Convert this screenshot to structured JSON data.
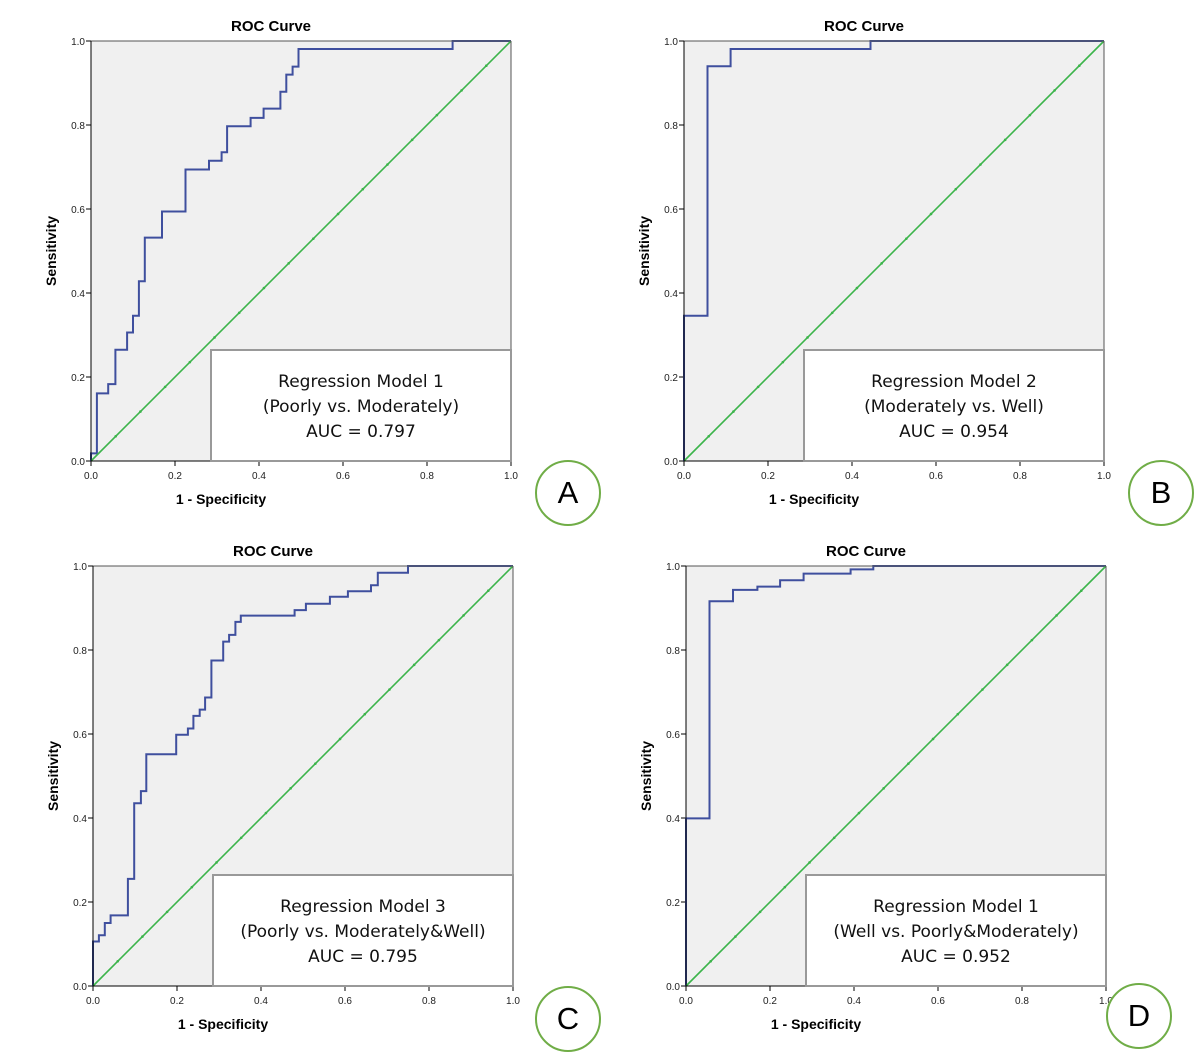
{
  "colors": {
    "curve": "#3f4f9e",
    "reference": "#3cb44b",
    "plot_bg": "#f0f0f0",
    "badge": "#70ad47"
  },
  "chart_data": [
    {
      "type": "line",
      "panel_label": "A",
      "title": "ROC Curve",
      "xlabel": "1 - Specificity",
      "ylabel": "Sensitivity",
      "xlim": [
        0,
        1
      ],
      "ylim": [
        0,
        1
      ],
      "xticks": [
        "0.0",
        "0.2",
        "0.4",
        "0.6",
        "0.8",
        "1.0"
      ],
      "yticks": [
        "0.0",
        "0.2",
        "0.4",
        "0.6",
        "0.8",
        "1.0"
      ],
      "legend": [
        "Regression Model 1",
        "(Poorly vs. Moderately)",
        "AUC = 0.797"
      ],
      "legend_position": "bottom-right",
      "series": [
        {
          "name": "ROC",
          "points": [
            [
              0,
              0
            ],
            [
              0,
              0.018
            ],
            [
              0.014,
              0.018
            ],
            [
              0.014,
              0.161
            ],
            [
              0.041,
              0.161
            ],
            [
              0.041,
              0.183
            ],
            [
              0.058,
              0.183
            ],
            [
              0.058,
              0.265
            ],
            [
              0.086,
              0.265
            ],
            [
              0.086,
              0.306
            ],
            [
              0.1,
              0.306
            ],
            [
              0.1,
              0.346
            ],
            [
              0.114,
              0.346
            ],
            [
              0.114,
              0.428
            ],
            [
              0.128,
              0.428
            ],
            [
              0.128,
              0.532
            ],
            [
              0.169,
              0.532
            ],
            [
              0.169,
              0.594
            ],
            [
              0.225,
              0.594
            ],
            [
              0.225,
              0.694
            ],
            [
              0.281,
              0.694
            ],
            [
              0.281,
              0.715
            ],
            [
              0.311,
              0.715
            ],
            [
              0.311,
              0.735
            ],
            [
              0.324,
              0.735
            ],
            [
              0.324,
              0.797
            ],
            [
              0.38,
              0.797
            ],
            [
              0.38,
              0.817
            ],
            [
              0.411,
              0.817
            ],
            [
              0.411,
              0.839
            ],
            [
              0.451,
              0.839
            ],
            [
              0.451,
              0.879
            ],
            [
              0.465,
              0.879
            ],
            [
              0.465,
              0.92
            ],
            [
              0.48,
              0.92
            ],
            [
              0.48,
              0.939
            ],
            [
              0.494,
              0.939
            ],
            [
              0.494,
              0.981
            ],
            [
              0.861,
              0.981
            ],
            [
              0.861,
              1
            ],
            [
              1,
              1
            ]
          ]
        },
        {
          "name": "Reference",
          "points": [
            [
              0,
              0
            ],
            [
              1,
              1
            ]
          ]
        }
      ]
    },
    {
      "type": "line",
      "panel_label": "B",
      "title": "ROC Curve",
      "xlabel": "1 - Specificity",
      "ylabel": "Sensitivity",
      "xlim": [
        0,
        1
      ],
      "ylim": [
        0,
        1
      ],
      "xticks": [
        "0.0",
        "0.2",
        "0.4",
        "0.6",
        "0.8",
        "1.0"
      ],
      "yticks": [
        "0.0",
        "0.2",
        "0.4",
        "0.6",
        "0.8",
        "1.0"
      ],
      "legend": [
        "Regression Model 2",
        "(Moderately vs. Well)",
        "AUC = 0.954"
      ],
      "legend_position": "bottom-right",
      "series": [
        {
          "name": "ROC",
          "points": [
            [
              0,
              0
            ],
            [
              0,
              0.346
            ],
            [
              0.056,
              0.346
            ],
            [
              0.056,
              0.94
            ],
            [
              0.111,
              0.94
            ],
            [
              0.111,
              0.981
            ],
            [
              0.444,
              0.981
            ],
            [
              0.444,
              1
            ],
            [
              1,
              1
            ]
          ]
        },
        {
          "name": "Reference",
          "points": [
            [
              0,
              0
            ],
            [
              1,
              1
            ]
          ]
        }
      ]
    },
    {
      "type": "line",
      "panel_label": "C",
      "title": "ROC Curve",
      "xlabel": "1 - Specificity",
      "ylabel": "Sensitivity",
      "xlim": [
        0,
        1
      ],
      "ylim": [
        0,
        1
      ],
      "xticks": [
        "0.0",
        "0.2",
        "0.4",
        "0.6",
        "0.8",
        "1.0"
      ],
      "yticks": [
        "0.0",
        "0.2",
        "0.4",
        "0.6",
        "0.8",
        "1.0"
      ],
      "legend": [
        "Regression Model 3",
        "(Poorly vs. Moderately&Well)",
        "AUC = 0.795"
      ],
      "legend_position": "bottom-right",
      "series": [
        {
          "name": "ROC",
          "points": [
            [
              0,
              0
            ],
            [
              0,
              0.106
            ],
            [
              0.014,
              0.106
            ],
            [
              0.014,
              0.121
            ],
            [
              0.028,
              0.121
            ],
            [
              0.028,
              0.15
            ],
            [
              0.042,
              0.15
            ],
            [
              0.042,
              0.168
            ],
            [
              0.083,
              0.168
            ],
            [
              0.083,
              0.255
            ],
            [
              0.098,
              0.255
            ],
            [
              0.098,
              0.435
            ],
            [
              0.114,
              0.435
            ],
            [
              0.114,
              0.464
            ],
            [
              0.127,
              0.464
            ],
            [
              0.127,
              0.552
            ],
            [
              0.198,
              0.552
            ],
            [
              0.198,
              0.598
            ],
            [
              0.226,
              0.598
            ],
            [
              0.226,
              0.613
            ],
            [
              0.239,
              0.613
            ],
            [
              0.239,
              0.643
            ],
            [
              0.254,
              0.643
            ],
            [
              0.254,
              0.658
            ],
            [
              0.267,
              0.658
            ],
            [
              0.267,
              0.687
            ],
            [
              0.282,
              0.687
            ],
            [
              0.282,
              0.775
            ],
            [
              0.31,
              0.775
            ],
            [
              0.31,
              0.82
            ],
            [
              0.324,
              0.82
            ],
            [
              0.324,
              0.836
            ],
            [
              0.339,
              0.836
            ],
            [
              0.339,
              0.867
            ],
            [
              0.352,
              0.867
            ],
            [
              0.352,
              0.882
            ],
            [
              0.48,
              0.882
            ],
            [
              0.48,
              0.895
            ],
            [
              0.507,
              0.895
            ],
            [
              0.507,
              0.91
            ],
            [
              0.564,
              0.91
            ],
            [
              0.564,
              0.927
            ],
            [
              0.607,
              0.927
            ],
            [
              0.607,
              0.94
            ],
            [
              0.662,
              0.94
            ],
            [
              0.662,
              0.954
            ],
            [
              0.678,
              0.954
            ],
            [
              0.678,
              0.984
            ],
            [
              0.75,
              0.984
            ],
            [
              0.75,
              1
            ],
            [
              1,
              1
            ]
          ]
        },
        {
          "name": "Reference",
          "points": [
            [
              0,
              0
            ],
            [
              1,
              1
            ]
          ]
        }
      ]
    },
    {
      "type": "line",
      "panel_label": "D",
      "title": "ROC Curve",
      "xlabel": "1 - Specificity",
      "ylabel": "Sensitivity",
      "xlim": [
        0,
        1
      ],
      "ylim": [
        0,
        1
      ],
      "xticks": [
        "0.0",
        "0.2",
        "0.4",
        "0.6",
        "0.8",
        "1.0"
      ],
      "yticks": [
        "0.0",
        "0.2",
        "0.4",
        "0.6",
        "0.8",
        "1.0"
      ],
      "legend": [
        "Regression Model 1",
        "(Well vs. Poorly&Moderately)",
        "AUC = 0.952"
      ],
      "legend_position": "bottom-right",
      "series": [
        {
          "name": "ROC",
          "points": [
            [
              0,
              0
            ],
            [
              0,
              0.399
            ],
            [
              0.056,
              0.399
            ],
            [
              0.056,
              0.916
            ],
            [
              0.112,
              0.916
            ],
            [
              0.112,
              0.943
            ],
            [
              0.17,
              0.943
            ],
            [
              0.17,
              0.951
            ],
            [
              0.224,
              0.951
            ],
            [
              0.224,
              0.966
            ],
            [
              0.28,
              0.966
            ],
            [
              0.28,
              0.982
            ],
            [
              0.392,
              0.982
            ],
            [
              0.392,
              0.992
            ],
            [
              0.446,
              0.992
            ],
            [
              0.446,
              1
            ],
            [
              1,
              1
            ]
          ]
        },
        {
          "name": "Reference",
          "points": [
            [
              0,
              0
            ],
            [
              1,
              1
            ]
          ]
        }
      ]
    }
  ]
}
